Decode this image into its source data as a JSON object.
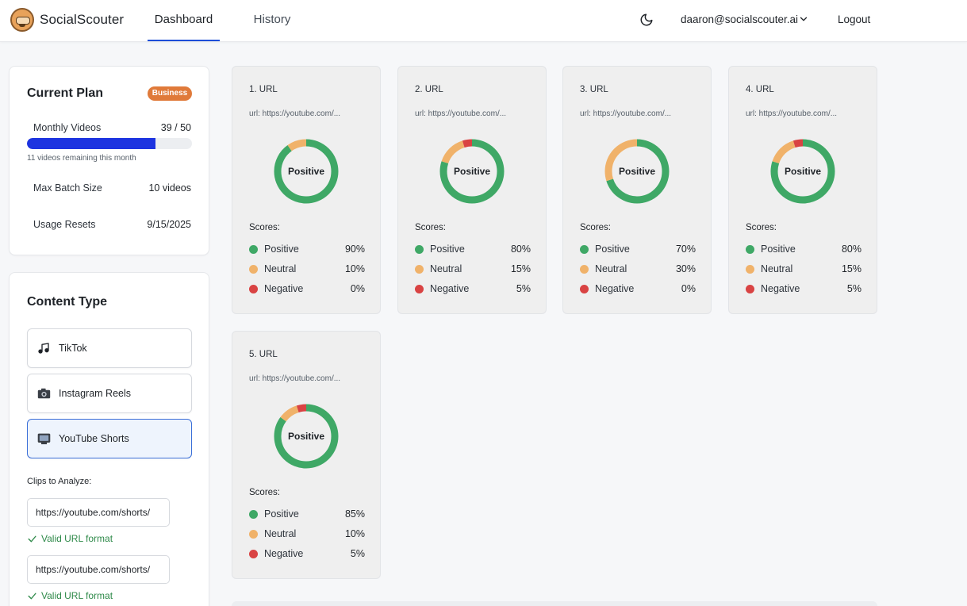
{
  "header": {
    "brand": "SocialScouter",
    "tabs": [
      {
        "label": "Dashboard",
        "active": true
      },
      {
        "label": "History",
        "active": false
      }
    ],
    "user_email": "daaron@socialscouter.ai",
    "logout_label": "Logout"
  },
  "plan": {
    "title": "Current Plan",
    "badge": "Business",
    "monthly_videos_label": "Monthly Videos",
    "monthly_videos_value": "39 / 50",
    "used": 39,
    "limit": 50,
    "remaining_text": "11 videos remaining this month",
    "max_batch_label": "Max Batch Size",
    "max_batch_value": "10 videos",
    "usage_resets_label": "Usage Resets",
    "usage_resets_value": "9/15/2025"
  },
  "content_type": {
    "title": "Content Type",
    "options": [
      {
        "label": "TikTok",
        "icon": "music-note-icon",
        "selected": false
      },
      {
        "label": "Instagram Reels",
        "icon": "camera-icon",
        "selected": false
      },
      {
        "label": "YouTube Shorts",
        "icon": "tv-icon",
        "selected": true
      }
    ],
    "clips_label": "Clips to Analyze:",
    "clips": [
      {
        "value": "https://youtube.com/shorts/",
        "status": "Valid URL format"
      },
      {
        "value": "https://youtube.com/shorts/",
        "status": "Valid URL format"
      }
    ]
  },
  "colors": {
    "positive": "#3fa866",
    "neutral": "#f0b26a",
    "negative": "#d94343",
    "accent": "#1d4ed8"
  },
  "results": {
    "scores_label": "Scores:",
    "positive_label": "Positive",
    "neutral_label": "Neutral",
    "negative_label": "Negative",
    "center_label": "Positive",
    "items": [
      {
        "title": "1. URL",
        "url": "url: https://youtube.com/...",
        "positive": 90,
        "neutral": 10,
        "negative": 0
      },
      {
        "title": "2. URL",
        "url": "url: https://youtube.com/...",
        "positive": 80,
        "neutral": 15,
        "negative": 5
      },
      {
        "title": "3. URL",
        "url": "url: https://youtube.com/...",
        "positive": 70,
        "neutral": 30,
        "negative": 0
      },
      {
        "title": "4. URL",
        "url": "url: https://youtube.com/...",
        "positive": 80,
        "neutral": 15,
        "negative": 5
      },
      {
        "title": "5. URL",
        "url": "url: https://youtube.com/...",
        "positive": 85,
        "neutral": 10,
        "negative": 5
      }
    ]
  }
}
